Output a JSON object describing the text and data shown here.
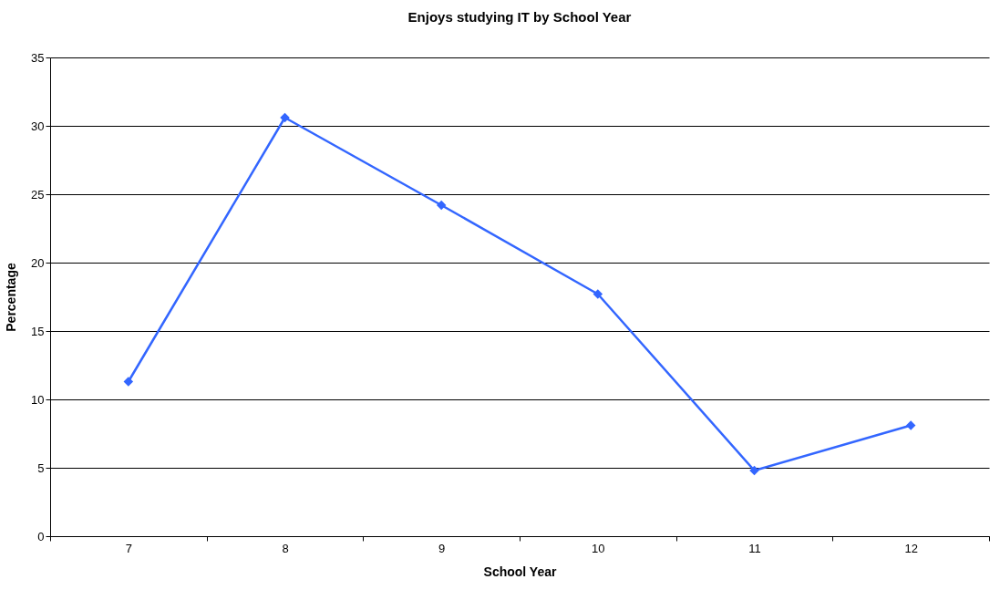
{
  "chart_data": {
    "type": "line",
    "title": "Enjoys studying IT by School Year",
    "xlabel": "School Year",
    "ylabel": "Percentage",
    "categories": [
      "7",
      "8",
      "9",
      "10",
      "11",
      "12"
    ],
    "series": [
      {
        "color": "#3366ff",
        "values": [
          11.3,
          30.6,
          24.2,
          17.7,
          4.8,
          8.1
        ]
      }
    ],
    "ylim": [
      0,
      35
    ],
    "yticks": [
      0,
      5,
      10,
      15,
      20,
      25,
      30,
      35
    ],
    "grid": "y",
    "legend": false,
    "marker": "diamond",
    "line_style": "solid"
  }
}
